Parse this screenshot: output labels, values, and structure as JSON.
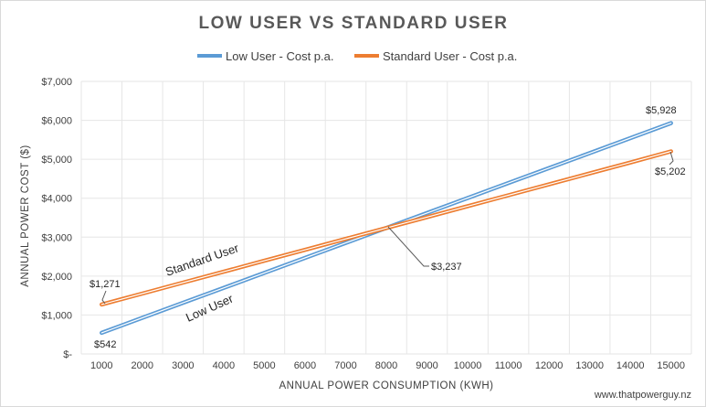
{
  "chart_data": {
    "type": "line",
    "title": "LOW USER VS STANDARD USER",
    "xlabel": "ANNUAL POWER CONSUMPTION (KWH)",
    "ylabel": "ANNUAL POWER COST ($)",
    "x": [
      1000,
      2000,
      3000,
      4000,
      5000,
      6000,
      7000,
      8000,
      9000,
      10000,
      11000,
      12000,
      13000,
      14000,
      15000
    ],
    "xlim": [
      1000,
      15000
    ],
    "ylim": [
      0,
      7000
    ],
    "y_ticks": [
      0,
      1000,
      2000,
      3000,
      4000,
      5000,
      6000,
      7000
    ],
    "y_tick_labels": [
      "$-",
      "$1,000",
      "$2,000",
      "$3,000",
      "$4,000",
      "$5,000",
      "$6,000",
      "$7,000"
    ],
    "grid": true,
    "legend_position": "top",
    "series": [
      {
        "name": "Low User - Cost p.a.",
        "color": "#5b9bd5",
        "values": [
          542,
          927,
          1312,
          1697,
          2081,
          2466,
          2851,
          3236,
          3620,
          4005,
          4390,
          4774,
          5159,
          5543,
          5928
        ]
      },
      {
        "name": "Standard User - Cost p.a.",
        "color": "#ed7d31",
        "values": [
          1271,
          1551,
          1832,
          2112,
          2393,
          2673,
          2954,
          3234,
          3515,
          3795,
          4076,
          4356,
          4637,
          4917,
          5202
        ]
      }
    ],
    "annotations": {
      "low_start": "$542",
      "standard_start": "$1,271",
      "intersection": "$3,237",
      "low_end": "$5,928",
      "standard_end": "$5,202",
      "low_curve_label": "Low User",
      "standard_curve_label": "Standard User"
    },
    "credit": "www.thatpowerguy.nz"
  }
}
